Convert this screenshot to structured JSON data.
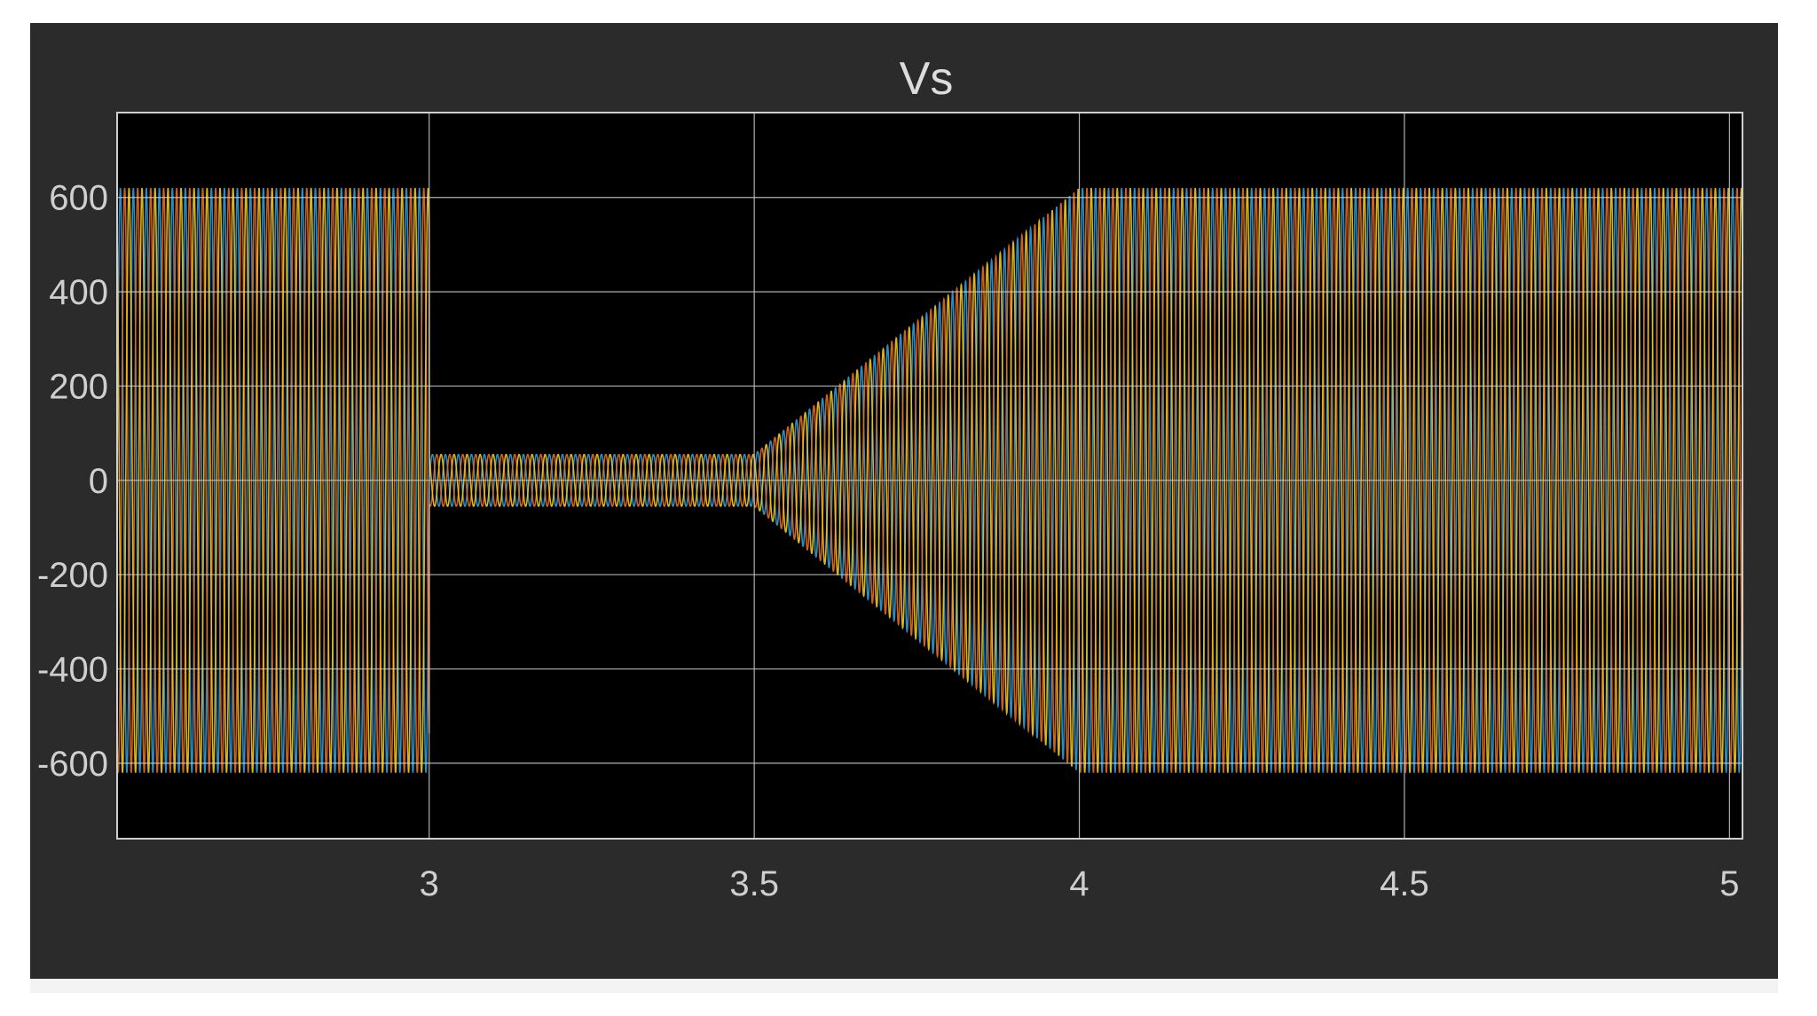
{
  "chart_data": {
    "type": "line",
    "title": "Vs",
    "xlabel": "",
    "ylabel": "",
    "xlim": [
      2.52,
      5.02
    ],
    "ylim": [
      -760,
      780
    ],
    "x_ticks": [
      3,
      3.5,
      4,
      4.5,
      5
    ],
    "x_tick_labels": [
      "3",
      "3.5",
      "4",
      "4.5",
      "5"
    ],
    "y_ticks": [
      600,
      400,
      200,
      0,
      -200,
      -400,
      -600
    ],
    "y_tick_labels": [
      "600",
      "400",
      "200",
      "0",
      "-200",
      "-400",
      "-600"
    ],
    "grid": true,
    "frequency_hz": 50,
    "phases": 3,
    "series": [
      {
        "color": "#2f9bd8"
      },
      {
        "color": "#e36b1f"
      },
      {
        "color": "#f2c81c"
      }
    ],
    "envelope": [
      {
        "t": 2.52,
        "amplitude": 620
      },
      {
        "t": 3.0,
        "amplitude": 620
      },
      {
        "t": 3.0,
        "amplitude": 55
      },
      {
        "t": 3.5,
        "amplitude": 55
      },
      {
        "t": 4.0,
        "amplitude": 620
      },
      {
        "t": 5.02,
        "amplitude": 620
      }
    ],
    "colors": {
      "figure_background": "#2b2b2b",
      "axes_background": "#000000",
      "grid": "#cfcfcf",
      "text": "#cfcfcf"
    }
  }
}
